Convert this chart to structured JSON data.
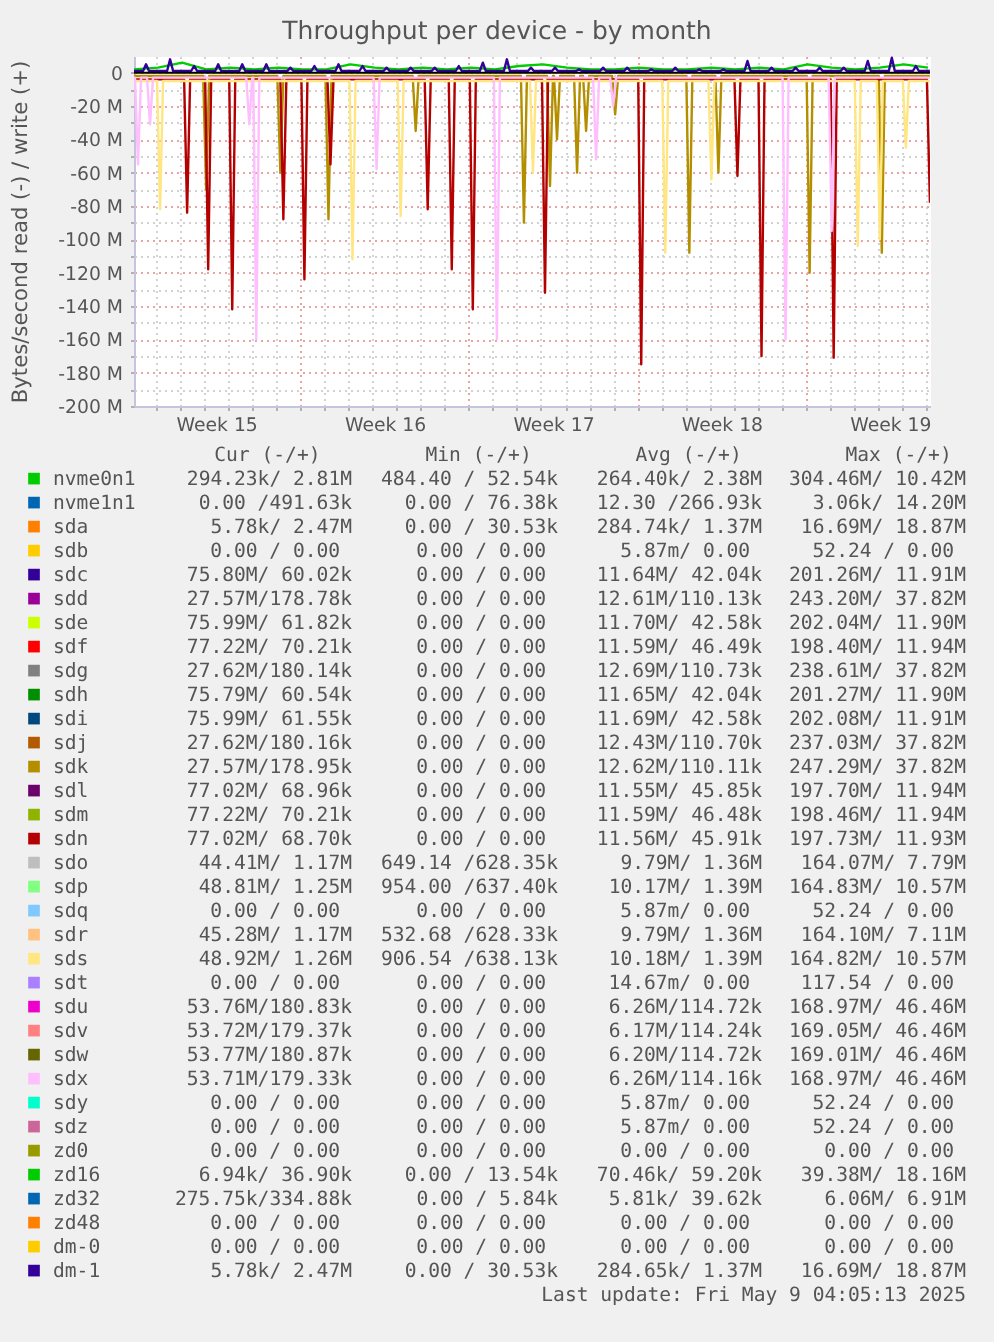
{
  "chart_data": {
    "type": "line",
    "title": "Throughput per device - by month",
    "ylabel": "Bytes/second read (-) / write (+)",
    "xlim": [
      "2025-04-06T02:00",
      "2025-05-09T04:05"
    ],
    "xticks": [
      {
        "value": "2025-04-09T12:00",
        "label": "Week 15"
      },
      {
        "value": "2025-04-13T00:00",
        "label": null
      },
      {
        "value": "2025-04-16T12:00",
        "label": "Week 16"
      },
      {
        "value": "2025-04-20T00:00",
        "label": null
      },
      {
        "value": "2025-04-23T12:00",
        "label": "Week 17"
      },
      {
        "value": "2025-04-27T00:00",
        "label": null
      },
      {
        "value": "2025-04-30T12:00",
        "label": "Week 18"
      },
      {
        "value": "2025-05-04T00:00",
        "label": null
      },
      {
        "value": "2025-05-07T12:00",
        "label": "Week 19"
      }
    ],
    "ylim": [
      -200000000,
      10000000
    ],
    "yticks": [
      0,
      {
        "value": -20000000,
        "label": "-20 M"
      },
      {
        "value": -40000000,
        "label": "-40 M"
      },
      {
        "value": -60000000,
        "label": "-60 M"
      },
      {
        "value": -80000000,
        "label": "-80 M"
      },
      {
        "value": -100000000,
        "label": "-100 M"
      },
      {
        "value": -120000000,
        "label": "-120 M"
      },
      {
        "value": -140000000,
        "label": "-140 M"
      },
      {
        "value": -160000000,
        "label": "-160 M"
      },
      {
        "value": -180000000,
        "label": "-180 M"
      },
      {
        "value": -200000000,
        "label": "-200 M"
      }
    ],
    "grid": true,
    "legend": "bottom",
    "ref_lines": [
      {
        "axis": "y",
        "value": 0,
        "color": "#000000"
      }
    ],
    "series": [
      {
        "name": "nvme0n1",
        "color": "#00cc00",
        "x": [
          "2025-04-06T02:00",
          "2025-04-07T02:00",
          "2025-04-08T02:00",
          "2025-04-09T02:00",
          "2025-04-10T02:00",
          "2025-04-11T02:00",
          "2025-04-12T02:00",
          "2025-04-13T02:00",
          "2025-04-14T02:00",
          "2025-04-15T02:00",
          "2025-04-16T02:00",
          "2025-04-17T02:00",
          "2025-04-18T02:00",
          "2025-04-19T02:00",
          "2025-04-20T02:00",
          "2025-04-21T02:00",
          "2025-04-22T02:00",
          "2025-04-23T02:00",
          "2025-04-24T02:00",
          "2025-04-25T02:00",
          "2025-04-26T02:00",
          "2025-04-27T02:00",
          "2025-04-28T02:00",
          "2025-04-29T02:00",
          "2025-04-30T02:00",
          "2025-05-01T02:00",
          "2025-05-02T02:00",
          "2025-05-03T02:00",
          "2025-05-04T02:00",
          "2025-05-05T02:00",
          "2025-05-06T02:00",
          "2025-05-07T02:00",
          "2025-05-08T02:00",
          "2025-05-09T02:00"
        ],
        "values": [
          2000000,
          3000000,
          6000000,
          2000000,
          3000000,
          2000000,
          3000000,
          2000000,
          2000000,
          5000000,
          3000000,
          2000000,
          3000000,
          2000000,
          3000000,
          2000000,
          4000000,
          5000000,
          3000000,
          2000000,
          2000000,
          3000000,
          2000000,
          2000000,
          3000000,
          2000000,
          3000000,
          2000000,
          5000000,
          3000000,
          2000000,
          3000000,
          5000000,
          3000000
        ]
      },
      {
        "name": "nvme1n1",
        "color": "#0066b3"
      },
      {
        "name": "sda",
        "color": "#ff8000"
      },
      {
        "name": "sdb",
        "color": "#ffcc00"
      },
      {
        "name": "sdc",
        "color": "#330099"
      },
      {
        "name": "sdd",
        "color": "#990099"
      },
      {
        "name": "sde",
        "color": "#ccff00"
      },
      {
        "name": "sdf",
        "color": "#ff0000"
      },
      {
        "name": "sdg",
        "color": "#808080"
      },
      {
        "name": "sdh",
        "color": "#008f00"
      },
      {
        "name": "sdi",
        "color": "#00487d"
      },
      {
        "name": "sdj",
        "color": "#b35a00"
      },
      {
        "name": "sdk",
        "color": "#b38f00",
        "x": [
          "2025-04-06T02:00",
          "2025-04-08T23:00",
          "2025-04-09T02:00",
          "2025-04-09T05:00",
          "2025-04-12T01:00",
          "2025-04-12T04:00",
          "2025-04-12T07:00",
          "2025-04-14T01:00",
          "2025-04-14T04:00",
          "2025-04-14T07:00",
          "2025-04-17T16:00",
          "2025-04-17T19:00",
          "2025-04-17T22:00",
          "2025-04-22T04:00",
          "2025-04-22T07:00",
          "2025-04-22T10:00",
          "2025-04-23T06:00",
          "2025-04-23T09:00",
          "2025-04-23T12:00",
          "2025-04-23T13:00",
          "2025-04-23T16:00",
          "2025-04-23T19:00",
          "2025-04-24T09:00",
          "2025-04-24T12:00",
          "2025-04-24T15:00",
          "2025-04-24T18:00",
          "2025-04-24T21:00",
          "2025-04-25T00:00",
          "2025-04-25T23:00",
          "2025-04-26T02:00",
          "2025-04-26T05:00",
          "2025-04-29T01:00",
          "2025-04-29T04:00",
          "2025-04-29T07:00",
          "2025-04-30T06:00",
          "2025-04-30T09:00",
          "2025-04-30T12:00",
          "2025-05-04T01:00",
          "2025-05-04T04:00",
          "2025-05-04T07:00",
          "2025-05-07T01:00",
          "2025-05-07T04:00",
          "2025-05-07T07:00",
          "2025-05-09T04:00"
        ],
        "values": [
          -2000000,
          -2000000,
          -70000000,
          -2000000,
          -2000000,
          -60000000,
          -2000000,
          -2000000,
          -88000000,
          -2000000,
          -2000000,
          -35000000,
          -2000000,
          -2000000,
          -90000000,
          -2000000,
          -2000000,
          -68000000,
          -2000000,
          -2000000,
          -40000000,
          -2000000,
          -2000000,
          -60000000,
          -2000000,
          -2000000,
          -35000000,
          -2000000,
          -2000000,
          -25000000,
          -2000000,
          -2000000,
          -108000000,
          -2000000,
          -2000000,
          -60000000,
          -2000000,
          -2000000,
          -120000000,
          -2000000,
          -2000000,
          -108000000,
          -2000000,
          -2000000
        ]
      },
      {
        "name": "sdl",
        "color": "#6b006b"
      },
      {
        "name": "sdm",
        "color": "#8fb300"
      },
      {
        "name": "sdn",
        "color": "#b30000",
        "x": [
          "2025-04-06T02:00",
          "2025-04-08T04:00",
          "2025-04-08T07:00",
          "2025-04-08T10:00",
          "2025-04-09T01:00",
          "2025-04-09T04:00",
          "2025-04-09T07:00",
          "2025-04-10T01:00",
          "2025-04-10T04:00",
          "2025-04-10T07:00",
          "2025-04-12T04:00",
          "2025-04-12T07:00",
          "2025-04-12T10:00",
          "2025-04-13T01:00",
          "2025-04-13T04:00",
          "2025-04-13T07:00",
          "2025-04-14T03:00",
          "2025-04-14T06:00",
          "2025-04-14T09:00",
          "2025-04-18T04:00",
          "2025-04-18T07:00",
          "2025-04-18T10:00",
          "2025-04-19T04:00",
          "2025-04-19T07:00",
          "2025-04-19T10:00",
          "2025-04-20T01:00",
          "2025-04-20T04:00",
          "2025-04-20T07:00",
          "2025-04-23T01:00",
          "2025-04-23T04:00",
          "2025-04-23T07:00",
          "2025-04-27T01:00",
          "2025-04-27T04:00",
          "2025-04-27T07:00",
          "2025-05-01T01:00",
          "2025-05-01T04:00",
          "2025-05-01T07:00",
          "2025-05-02T01:00",
          "2025-05-02T04:00",
          "2025-05-02T07:00",
          "2025-05-05T01:00",
          "2025-05-05T04:00",
          "2025-05-05T07:00",
          "2025-05-09T01:00",
          "2025-05-09T04:00"
        ],
        "values": [
          -4000000,
          -4000000,
          -84000000,
          -4000000,
          -4000000,
          -118000000,
          -4000000,
          -4000000,
          -142000000,
          -4000000,
          -4000000,
          -88000000,
          -4000000,
          -4000000,
          -124000000,
          -4000000,
          -4000000,
          -55000000,
          -4000000,
          -4000000,
          -82000000,
          -4000000,
          -4000000,
          -118000000,
          -4000000,
          -4000000,
          -142000000,
          -4000000,
          -4000000,
          -132000000,
          -4000000,
          -4000000,
          -175000000,
          -4000000,
          -4000000,
          -62000000,
          -4000000,
          -4000000,
          -170000000,
          -4000000,
          -4000000,
          -171000000,
          -4000000,
          -4000000,
          -78000000
        ]
      },
      {
        "name": "sdo",
        "color": "#bebebe"
      },
      {
        "name": "sdp",
        "color": "#80ff80"
      },
      {
        "name": "sdq",
        "color": "#80c9ff"
      },
      {
        "name": "sdr",
        "color": "#ffc080"
      },
      {
        "name": "sds",
        "color": "#ffe680",
        "x": [
          "2025-04-06T02:00",
          "2025-04-07T01:00",
          "2025-04-07T04:00",
          "2025-04-07T07:00",
          "2025-04-15T01:00",
          "2025-04-15T04:00",
          "2025-04-15T07:00",
          "2025-04-17T01:00",
          "2025-04-17T04:00",
          "2025-04-17T07:00",
          "2025-04-22T13:00",
          "2025-04-22T16:00",
          "2025-04-22T19:00",
          "2025-04-28T01:00",
          "2025-04-28T04:00",
          "2025-04-28T07:00",
          "2025-04-29T23:00",
          "2025-04-30T02:00",
          "2025-04-30T05:00",
          "2025-05-06T01:00",
          "2025-05-06T04:00",
          "2025-05-06T07:00",
          "2025-05-06T23:00",
          "2025-05-07T02:00",
          "2025-05-07T05:00",
          "2025-05-08T01:00",
          "2025-05-08T04:00",
          "2025-05-08T07:00",
          "2025-05-09T04:00"
        ],
        "values": [
          -5000000,
          -5000000,
          -82000000,
          -5000000,
          -5000000,
          -112000000,
          -5000000,
          -5000000,
          -86000000,
          -5000000,
          -5000000,
          -60000000,
          -5000000,
          -5000000,
          -108000000,
          -5000000,
          -5000000,
          -64000000,
          -5000000,
          -5000000,
          -104000000,
          -5000000,
          -5000000,
          -100000000,
          -5000000,
          -5000000,
          -45000000,
          -5000000,
          -5000000
        ]
      },
      {
        "name": "sdt",
        "color": "#aa80ff"
      },
      {
        "name": "sdu",
        "color": "#ee00cc"
      },
      {
        "name": "sdv",
        "color": "#ff8080"
      },
      {
        "name": "sdw",
        "color": "#666600"
      },
      {
        "name": "sdx",
        "color": "#ffbfff",
        "x": [
          "2025-04-06T02:00",
          "2025-04-06T03:00",
          "2025-04-06T06:00",
          "2025-04-06T09:00",
          "2025-04-06T15:00",
          "2025-04-06T18:00",
          "2025-04-06T21:00",
          "2025-04-10T18:00",
          "2025-04-10T21:00",
          "2025-04-11T00:00",
          "2025-04-11T01:00",
          "2025-04-11T04:00",
          "2025-04-11T07:00",
          "2025-04-16T01:00",
          "2025-04-16T04:00",
          "2025-04-16T07:00",
          "2025-04-21T01:00",
          "2025-04-21T04:00",
          "2025-04-21T07:00",
          "2025-04-25T04:00",
          "2025-04-25T07:00",
          "2025-04-25T10:00",
          "2025-04-25T21:00",
          "2025-04-26T00:00",
          "2025-04-26T03:00",
          "2025-05-03T01:00",
          "2025-05-03T04:00",
          "2025-05-03T07:00",
          "2025-05-04T23:00",
          "2025-05-05T02:00",
          "2025-05-05T05:00",
          "2025-05-09T04:00"
        ],
        "values": [
          -3000000,
          -3000000,
          -55000000,
          -3000000,
          -3000000,
          -31000000,
          -3000000,
          -3000000,
          -31000000,
          -3000000,
          -3000000,
          -160000000,
          -3000000,
          -3000000,
          -58000000,
          -3000000,
          -3000000,
          -160000000,
          -3000000,
          -3000000,
          -52000000,
          -3000000,
          -3000000,
          -20000000,
          -3000000,
          -3000000,
          -160000000,
          -3000000,
          -3000000,
          -95000000,
          -3000000,
          -3000000
        ]
      },
      {
        "name": "sdy",
        "color": "#00ffcc"
      },
      {
        "name": "sdz",
        "color": "#cc6699"
      },
      {
        "name": "zd0",
        "color": "#999900"
      },
      {
        "name": "zd16",
        "color": "#00cc00"
      },
      {
        "name": "zd32",
        "color": "#0066b3"
      },
      {
        "name": "zd48",
        "color": "#ff8000"
      },
      {
        "name": "dm-0",
        "color": "#ffcc00"
      },
      {
        "name": "dm-1",
        "color": "#330099",
        "x": [
          "2025-04-06T02:00",
          "2025-04-06T11:00",
          "2025-04-06T14:00",
          "2025-04-06T17:00",
          "2025-04-07T11:00",
          "2025-04-07T14:00",
          "2025-04-07T17:00",
          "2025-04-08T11:00",
          "2025-04-08T14:00",
          "2025-04-08T17:00",
          "2025-04-09T11:00",
          "2025-04-09T14:00",
          "2025-04-09T17:00",
          "2025-04-10T11:00",
          "2025-04-10T14:00",
          "2025-04-10T17:00",
          "2025-04-11T11:00",
          "2025-04-11T14:00",
          "2025-04-11T17:00",
          "2025-04-12T11:00",
          "2025-04-12T14:00",
          "2025-04-12T17:00",
          "2025-04-13T11:00",
          "2025-04-13T14:00",
          "2025-04-13T17:00",
          "2025-04-14T11:00",
          "2025-04-14T14:00",
          "2025-04-14T17:00",
          "2025-04-15T11:00",
          "2025-04-15T14:00",
          "2025-04-15T17:00",
          "2025-04-16T11:00",
          "2025-04-16T14:00",
          "2025-04-16T17:00",
          "2025-04-17T11:00",
          "2025-04-17T14:00",
          "2025-04-17T17:00",
          "2025-04-18T11:00",
          "2025-04-18T14:00",
          "2025-04-18T17:00",
          "2025-04-19T11:00",
          "2025-04-19T14:00",
          "2025-04-19T17:00",
          "2025-04-20T11:00",
          "2025-04-20T14:00",
          "2025-04-20T17:00",
          "2025-04-21T11:00",
          "2025-04-21T14:00",
          "2025-04-21T17:00",
          "2025-04-22T11:00",
          "2025-04-22T14:00",
          "2025-04-22T17:00",
          "2025-04-23T11:00",
          "2025-04-23T14:00",
          "2025-04-23T17:00",
          "2025-04-24T11:00",
          "2025-04-24T14:00",
          "2025-04-24T17:00",
          "2025-04-25T11:00",
          "2025-04-25T14:00",
          "2025-04-25T17:00",
          "2025-04-26T11:00",
          "2025-04-26T14:00",
          "2025-04-26T17:00",
          "2025-04-27T11:00",
          "2025-04-27T14:00",
          "2025-04-27T17:00",
          "2025-04-28T11:00",
          "2025-04-28T14:00",
          "2025-04-28T17:00",
          "2025-04-29T11:00",
          "2025-04-29T14:00",
          "2025-04-29T17:00",
          "2025-04-30T11:00",
          "2025-04-30T14:00",
          "2025-04-30T17:00",
          "2025-05-01T11:00",
          "2025-05-01T14:00",
          "2025-05-01T17:00",
          "2025-05-02T11:00",
          "2025-05-02T14:00",
          "2025-05-02T17:00",
          "2025-05-03T11:00",
          "2025-05-03T14:00",
          "2025-05-03T17:00",
          "2025-05-04T11:00",
          "2025-05-04T14:00",
          "2025-05-04T17:00",
          "2025-05-05T11:00",
          "2025-05-05T14:00",
          "2025-05-05T17:00",
          "2025-05-06T11:00",
          "2025-05-06T14:00",
          "2025-05-06T17:00",
          "2025-05-07T11:00",
          "2025-05-07T14:00",
          "2025-05-07T17:00",
          "2025-05-08T11:00",
          "2025-05-08T14:00",
          "2025-05-08T17:00",
          "2025-05-09T04:00"
        ],
        "values": [
          1000000,
          1000000,
          5000000,
          1000000,
          1000000,
          8000000,
          1000000,
          1000000,
          4000000,
          1000000,
          1000000,
          5000000,
          1000000,
          1000000,
          5000000,
          1000000,
          1000000,
          5000000,
          1000000,
          1000000,
          3000000,
          1000000,
          1000000,
          4000000,
          1000000,
          1000000,
          5000000,
          1000000,
          1000000,
          4000000,
          1000000,
          1000000,
          3000000,
          1000000,
          1000000,
          3000000,
          1000000,
          1000000,
          3000000,
          1000000,
          1000000,
          4000000,
          1000000,
          1000000,
          6000000,
          1000000,
          1000000,
          8000000,
          1000000,
          1000000,
          3000000,
          1000000,
          1000000,
          3000000,
          1000000,
          1000000,
          2000000,
          1000000,
          1000000,
          3000000,
          1000000,
          1000000,
          3000000,
          1000000,
          1000000,
          2000000,
          1000000,
          1000000,
          3000000,
          1000000,
          1000000,
          2000000,
          1000000,
          1000000,
          2000000,
          1000000,
          1000000,
          7000000,
          1000000,
          1000000,
          3000000,
          1000000,
          1000000,
          3000000,
          1000000,
          1000000,
          3000000,
          1000000,
          1000000,
          3000000,
          1000000,
          1000000,
          7000000,
          1000000,
          1000000,
          9000000,
          1000000,
          1000000,
          4000000,
          1000000,
          1000000
        ]
      }
    ],
    "annotations": [
      "Cur (-/+)",
      "Min (-/+)",
      "Avg (-/+)",
      "Max (-/+)",
      "294.23k/  2.81M",
      "484.40 / 52.54k",
      "264.40k/  2.38M",
      "304.46M/ 10.42M",
      "0.00 /491.63k",
      "0.00 / 76.38k",
      "12.30 /266.93k",
      "3.06k/ 14.20M",
      "5.78k/  2.47M",
      "0.00 / 30.53k",
      "284.74k/  1.37M",
      "16.69M/ 18.87M",
      "0.00 /  0.00",
      "0.00 /  0.00",
      "5.87m/  0.00",
      "52.24 /  0.00",
      "75.80M/ 60.02k",
      "0.00 /  0.00",
      "11.64M/ 42.04k",
      "201.26M/ 11.91M",
      "27.57M/178.78k",
      "0.00 /  0.00",
      "12.61M/110.13k",
      "243.20M/ 37.82M",
      "75.99M/ 61.82k",
      "0.00 /  0.00",
      "11.70M/ 42.58k",
      "202.04M/ 11.90M",
      "77.22M/ 70.21k",
      "0.00 /  0.00",
      "11.59M/ 46.49k",
      "198.40M/ 11.94M",
      "27.62M/180.14k",
      "0.00 /  0.00",
      "12.69M/110.73k",
      "238.61M/ 37.82M",
      "75.79M/ 60.54k",
      "0.00 /  0.00",
      "11.65M/ 42.04k",
      "201.27M/ 11.90M",
      "75.99M/ 61.55k",
      "0.00 /  0.00",
      "11.69M/ 42.58k",
      "202.08M/ 11.91M",
      "27.62M/180.16k",
      "0.00 /  0.00",
      "12.43M/110.70k",
      "237.03M/ 37.82M",
      "27.57M/178.95k",
      "0.00 /  0.00",
      "12.62M/110.11k",
      "247.29M/ 37.82M",
      "77.02M/ 68.96k",
      "0.00 /  0.00",
      "11.55M/ 45.85k",
      "197.70M/ 11.94M",
      "77.22M/ 70.21k",
      "0.00 /  0.00",
      "11.59M/ 46.48k",
      "198.46M/ 11.94M",
      "77.02M/ 68.70k",
      "0.00 /  0.00",
      "11.56M/ 45.91k",
      "197.73M/ 11.93M",
      "44.41M/  1.17M",
      "649.14 /628.35k",
      "9.79M/  1.36M",
      "164.07M/  7.79M",
      "48.81M/  1.25M",
      "954.00 /637.40k",
      "10.17M/  1.39M",
      "164.83M/ 10.57M",
      "0.00 /  0.00",
      "0.00 /  0.00",
      "5.87m/  0.00",
      "52.24 /  0.00",
      "45.28M/  1.17M",
      "532.68 /628.33k",
      "9.79M/  1.36M",
      "164.10M/  7.11M",
      "48.92M/  1.26M",
      "906.54 /638.13k",
      "10.18M/  1.39M",
      "164.82M/ 10.57M",
      "0.00 /  0.00",
      "0.00 /  0.00",
      "14.67m/  0.00",
      "117.54 /  0.00",
      "53.76M/180.83k",
      "0.00 /  0.00",
      "6.26M/114.72k",
      "168.97M/ 46.46M",
      "53.72M/179.37k",
      "0.00 /  0.00",
      "6.17M/114.24k",
      "169.05M/ 46.46M",
      "53.77M/180.87k",
      "0.00 /  0.00",
      "6.20M/114.72k",
      "169.01M/ 46.46M",
      "53.71M/179.33k",
      "0.00 /  0.00",
      "6.26M/114.16k",
      "168.97M/ 46.46M",
      "0.00 /  0.00",
      "0.00 /  0.00",
      "5.87m/  0.00",
      "52.24 /  0.00",
      "0.00 /  0.00",
      "0.00 /  0.00",
      "5.87m/  0.00",
      "52.24 /  0.00",
      "0.00 /  0.00",
      "0.00 /  0.00",
      "0.00 /  0.00",
      "0.00 /  0.00",
      "6.94k/ 36.90k",
      "0.00 / 13.54k",
      "70.46k/ 59.20k",
      "39.38M/ 18.16M",
      "275.75k/334.88k",
      "0.00 /  5.84k",
      "5.81k/ 39.62k",
      "6.06M/  6.91M",
      "0.00 /  0.00",
      "0.00 /  0.00",
      "0.00 /  0.00",
      "0.00 /  0.00",
      "0.00 /  0.00",
      "0.00 /  0.00",
      "0.00 /  0.00",
      "0.00 /  0.00",
      "5.78k/  2.47M",
      "0.00 / 30.53k",
      "284.65k/  1.37M",
      "16.69M/ 18.87M",
      "Last update: Fri May  9 04:05:13 2025"
    ]
  }
}
